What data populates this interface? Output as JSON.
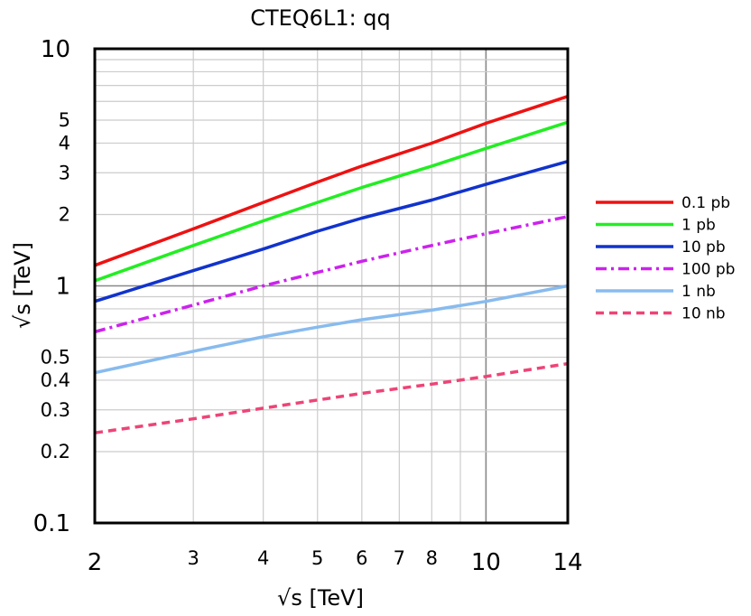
{
  "chart_data": {
    "type": "line",
    "title": "CTEQ6L1: qq",
    "xlabel": "√s  [TeV]",
    "ylabel": "√s [TeV]",
    "x_scale": "log",
    "y_scale": "log",
    "xlim": [
      2,
      14
    ],
    "ylim": [
      0.1,
      10
    ],
    "grid": true,
    "legend_position": "right",
    "x_ticks": [
      {
        "value": 2,
        "label": "2"
      },
      {
        "value": 3,
        "label": "3"
      },
      {
        "value": 4,
        "label": "4"
      },
      {
        "value": 5,
        "label": "5"
      },
      {
        "value": 6,
        "label": "6"
      },
      {
        "value": 7,
        "label": "7"
      },
      {
        "value": 8,
        "label": "8"
      },
      {
        "value": 10,
        "label": "10"
      },
      {
        "value": 14,
        "label": "14"
      }
    ],
    "x_minor_grid": [
      9
    ],
    "y_ticks": [
      {
        "value": 0.1,
        "label": "0.1"
      },
      {
        "value": 0.2,
        "label": "0.2"
      },
      {
        "value": 0.3,
        "label": "0.3"
      },
      {
        "value": 0.4,
        "label": "0.4"
      },
      {
        "value": 0.5,
        "label": "0.5"
      },
      {
        "value": 1,
        "label": "1"
      },
      {
        "value": 2,
        "label": "2"
      },
      {
        "value": 3,
        "label": "3"
      },
      {
        "value": 4,
        "label": "4"
      },
      {
        "value": 5,
        "label": "5"
      },
      {
        "value": 10,
        "label": "10"
      }
    ],
    "y_minor_grid": [
      0.6,
      0.7,
      0.8,
      0.9,
      6,
      7,
      8,
      9
    ],
    "reference_lines": {
      "x": 10,
      "y": 1
    },
    "series": [
      {
        "name": "0.1 pb",
        "color": "#ee1111",
        "dash": "solid",
        "points": [
          [
            2,
            1.22
          ],
          [
            3,
            1.74
          ],
          [
            4,
            2.25
          ],
          [
            5,
            2.74
          ],
          [
            6,
            3.2
          ],
          [
            8,
            4.0
          ],
          [
            10,
            4.85
          ],
          [
            14,
            6.3
          ]
        ]
      },
      {
        "name": "1 pb",
        "color": "#22ee22",
        "dash": "solid",
        "points": [
          [
            2,
            1.05
          ],
          [
            3,
            1.48
          ],
          [
            4,
            1.88
          ],
          [
            5,
            2.25
          ],
          [
            6,
            2.6
          ],
          [
            8,
            3.2
          ],
          [
            10,
            3.8
          ],
          [
            14,
            4.9
          ]
        ]
      },
      {
        "name": "10 pb",
        "color": "#1133cc",
        "dash": "solid",
        "points": [
          [
            2,
            0.86
          ],
          [
            3,
            1.16
          ],
          [
            4,
            1.43
          ],
          [
            5,
            1.7
          ],
          [
            6,
            1.93
          ],
          [
            8,
            2.3
          ],
          [
            10,
            2.68
          ],
          [
            14,
            3.35
          ]
        ]
      },
      {
        "name": "100 pb",
        "color": "#cc22ee",
        "dash": "dashdot",
        "points": [
          [
            2,
            0.64
          ],
          [
            3,
            0.83
          ],
          [
            4,
            1.0
          ],
          [
            5,
            1.14
          ],
          [
            6,
            1.27
          ],
          [
            8,
            1.48
          ],
          [
            10,
            1.66
          ],
          [
            14,
            1.96
          ]
        ]
      },
      {
        "name": "1 nb",
        "color": "#88bbee",
        "dash": "solid",
        "points": [
          [
            2,
            0.43
          ],
          [
            3,
            0.53
          ],
          [
            4,
            0.61
          ],
          [
            5,
            0.67
          ],
          [
            6,
            0.72
          ],
          [
            8,
            0.79
          ],
          [
            10,
            0.86
          ],
          [
            14,
            1.0
          ]
        ]
      },
      {
        "name": "10 nb",
        "color": "#ee4477",
        "dash": "dashed",
        "points": [
          [
            2,
            0.24
          ],
          [
            3,
            0.275
          ],
          [
            4,
            0.305
          ],
          [
            5,
            0.33
          ],
          [
            6,
            0.352
          ],
          [
            8,
            0.385
          ],
          [
            10,
            0.415
          ],
          [
            14,
            0.47
          ]
        ]
      }
    ]
  }
}
